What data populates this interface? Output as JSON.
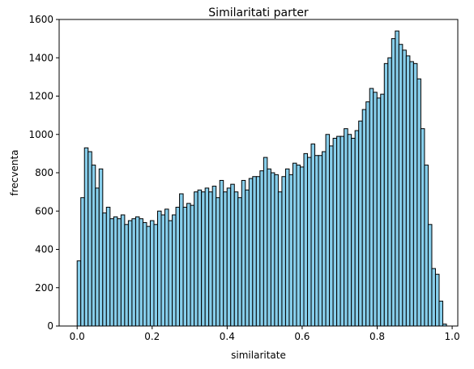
{
  "chart_data": {
    "type": "bar",
    "title": "Similaritati parter",
    "xlabel": "similaritate",
    "ylabel": "frecventa",
    "xlim": [
      -0.048,
      1.015
    ],
    "ylim": [
      0,
      1600
    ],
    "xticks": [
      0.0,
      0.2,
      0.4,
      0.6,
      0.8,
      1.0
    ],
    "xtick_labels": [
      "0.0",
      "0.2",
      "0.4",
      "0.6",
      "0.8",
      "1.0"
    ],
    "yticks": [
      0,
      200,
      400,
      600,
      800,
      1000,
      1200,
      1400,
      1600
    ],
    "ytick_labels": [
      "0",
      "200",
      "400",
      "600",
      "800",
      "1000",
      "1200",
      "1400",
      "1600"
    ],
    "bin_start": 0.0,
    "bin_width": 0.00975,
    "bar_color": "#87ceeb",
    "edge_color": "#000000",
    "values": [
      340,
      670,
      930,
      910,
      840,
      720,
      820,
      590,
      620,
      560,
      570,
      560,
      580,
      530,
      550,
      560,
      570,
      560,
      540,
      520,
      550,
      530,
      600,
      580,
      610,
      550,
      580,
      620,
      690,
      620,
      640,
      630,
      700,
      710,
      700,
      720,
      700,
      730,
      670,
      760,
      700,
      720,
      740,
      700,
      670,
      760,
      710,
      770,
      780,
      780,
      810,
      880,
      820,
      800,
      790,
      700,
      780,
      820,
      790,
      850,
      840,
      830,
      900,
      880,
      950,
      890,
      890,
      910,
      1000,
      940,
      980,
      990,
      990,
      1030,
      1000,
      980,
      1020,
      1070,
      1130,
      1170,
      1240,
      1220,
      1190,
      1210,
      1370,
      1400,
      1500,
      1540,
      1470,
      1440,
      1410,
      1380,
      1370,
      1290,
      1030,
      840,
      530,
      300,
      270,
      130,
      10
    ],
    "grid": false,
    "legend": false
  }
}
